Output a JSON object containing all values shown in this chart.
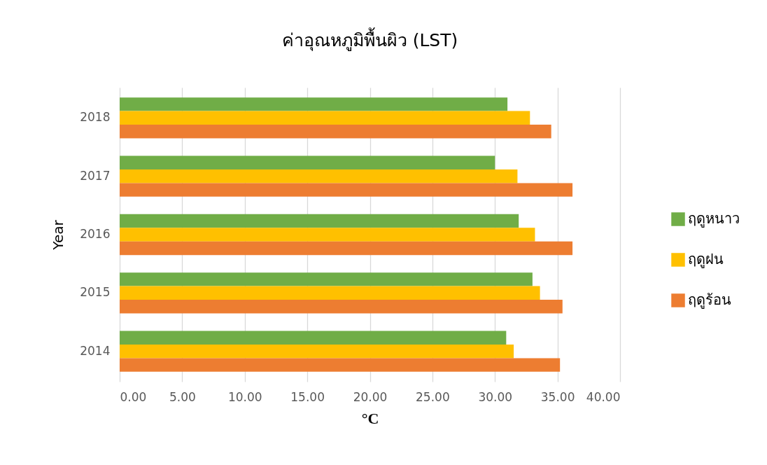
{
  "chart_data": {
    "type": "bar",
    "orientation": "horizontal",
    "title": "ค่าอุณหภูมิพื้นผิว (LST)",
    "xlabel": "°C",
    "ylabel": "Year",
    "categories": [
      "2018",
      "2017",
      "2016",
      "2015",
      "2014"
    ],
    "series": [
      {
        "name": "ฤดูหนาว",
        "color": "#70ad47",
        "values": [
          31.0,
          30.0,
          31.9,
          33.0,
          30.9
        ]
      },
      {
        "name": "ฤดูฝน",
        "color": "#ffc000",
        "values": [
          32.8,
          31.8,
          33.2,
          33.6,
          31.5
        ]
      },
      {
        "name": "ฤดูร้อน",
        "color": "#ed7d31",
        "values": [
          34.5,
          36.2,
          36.2,
          35.4,
          35.2
        ]
      }
    ],
    "xlim": [
      0,
      40
    ],
    "xticks": [
      {
        "value": 0,
        "label": "0.00"
      },
      {
        "value": 5,
        "label": "5.00"
      },
      {
        "value": 10,
        "label": "10.00"
      },
      {
        "value": 15,
        "label": "15.00"
      },
      {
        "value": 20,
        "label": "20.00"
      },
      {
        "value": 25,
        "label": "25.00"
      },
      {
        "value": 30,
        "label": "30.00"
      },
      {
        "value": 35,
        "label": "35.00"
      },
      {
        "value": 40,
        "label": "40.00"
      }
    ],
    "grid": "x",
    "legend": "right"
  }
}
